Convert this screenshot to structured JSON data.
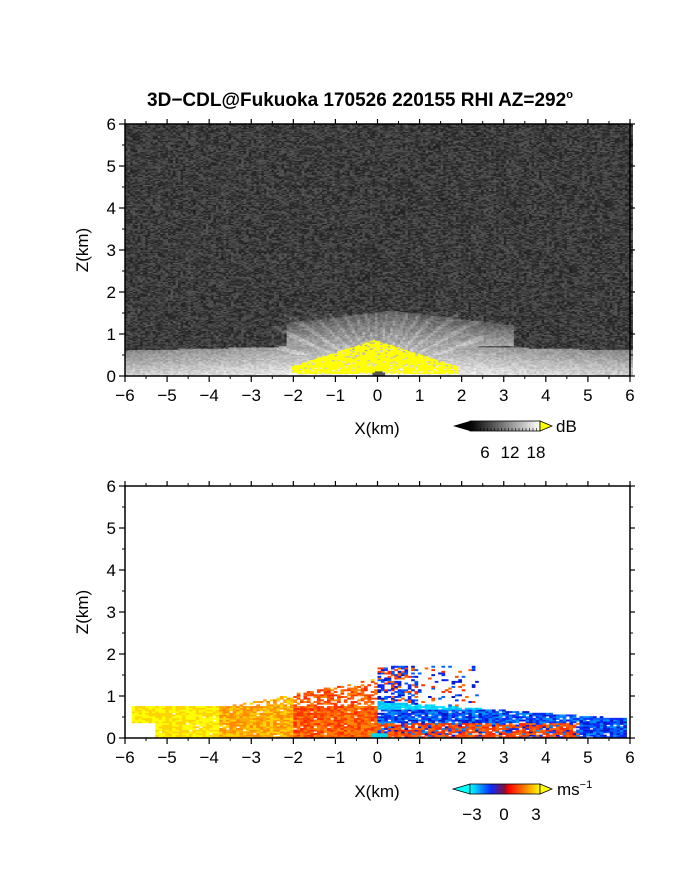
{
  "title": "3D−CDL@Fukuoka 170526 220155 RHI AZ=292",
  "title_degree": "o",
  "chart_data": [
    {
      "type": "heatmap",
      "field": "reflectivity",
      "xlabel": "X(km)",
      "ylabel": "Z(km)",
      "xlim": [
        -6,
        6
      ],
      "ylim": [
        0,
        6
      ],
      "xticks": [
        "−6",
        "−5",
        "−4",
        "−3",
        "−2",
        "−1",
        "0",
        "1",
        "2",
        "3",
        "4",
        "5",
        "6"
      ],
      "yticks": [
        "0",
        "1",
        "2",
        "3",
        "4",
        "5",
        "6"
      ],
      "background_color": "#2b2b2b",
      "features": [
        {
          "kind": "bright-layer",
          "x": [
            -6,
            6
          ],
          "z": [
            0,
            0.75
          ]
        },
        {
          "kind": "plume",
          "x": [
            -2,
            2.8
          ],
          "z": [
            0.7,
            1.6
          ]
        },
        {
          "kind": "saturated-core",
          "x": [
            -2.1,
            1.9
          ],
          "z": [
            0,
            0.85
          ],
          "value": 18
        }
      ],
      "colorbar": {
        "unit": "dB",
        "tick_labels": [
          "6",
          "12",
          "18"
        ],
        "range": [
          0,
          20
        ],
        "colors": [
          "#000000",
          "#ffffff"
        ],
        "over_color": "#ffff00"
      }
    },
    {
      "type": "heatmap",
      "field": "doppler velocity",
      "xlabel": "X(km)",
      "ylabel": "Z(km)",
      "xlim": [
        -6,
        6
      ],
      "ylim": [
        0,
        6
      ],
      "xticks": [
        "−6",
        "−5",
        "−4",
        "−3",
        "−2",
        "−1",
        "0",
        "1",
        "2",
        "3",
        "4",
        "5",
        "6"
      ],
      "yticks": [
        "0",
        "1",
        "2",
        "3",
        "4",
        "5",
        "6"
      ],
      "background_color": "#ffffff",
      "features": [
        {
          "kind": "positive-velocity-region",
          "x": [
            -6,
            0
          ],
          "z": [
            0,
            1.7
          ],
          "value": 3
        },
        {
          "kind": "negative-velocity-region",
          "x": [
            0,
            5.9
          ],
          "z": [
            0,
            1.7
          ],
          "value": -3
        }
      ],
      "colorbar": {
        "unit": "ms",
        "unit_exponent": "−1",
        "tick_labels": [
          "−3",
          "0",
          "3"
        ],
        "range": [
          -4.5,
          4.5
        ],
        "colors": [
          "#00ffff",
          "#0a2aff",
          "#ff0000",
          "#ff8a00",
          "#ffff00"
        ]
      }
    }
  ]
}
